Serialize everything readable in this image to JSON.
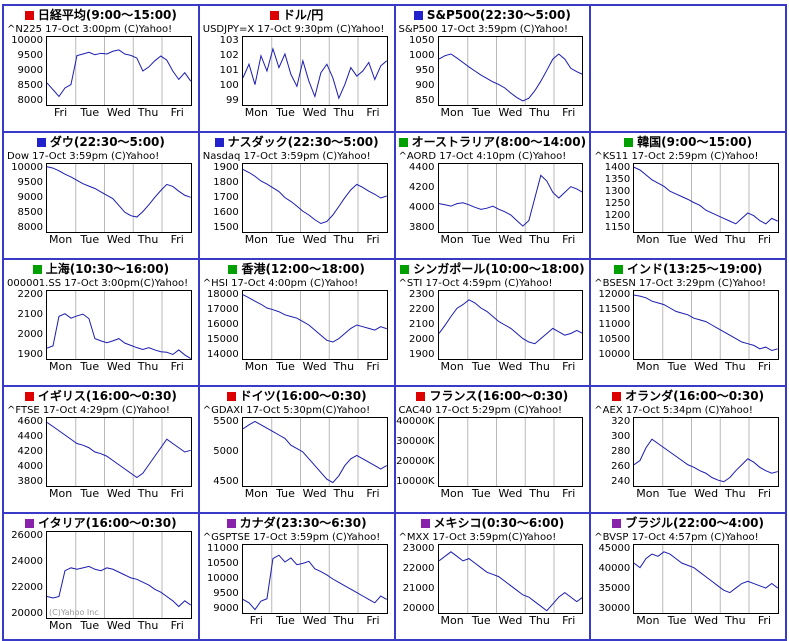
{
  "page": {
    "background": "#ffffff",
    "grid_border_color": "#3a3ac8",
    "plot_line_color": "#1c1cb0",
    "day_gridline_color": "#b8b8b8",
    "square_colors": {
      "red": "#dd0000",
      "blue": "#2222cc",
      "green": "#00a000",
      "purple": "#8822aa"
    }
  },
  "chart_data": [
    {
      "id": "nikkei",
      "type": "line",
      "square_color": "#dd0000",
      "title": "日経平均(9:00～15:00)",
      "subtitle": "^N225 17-Oct 3:00pm (C)Yahoo!",
      "y_ticks": [
        "10000",
        "9500",
        "9000",
        "8500",
        "8000"
      ],
      "x_labels": [
        "Fri",
        "Tue",
        "Wed",
        "Thu",
        "Fri"
      ],
      "ylim": [
        8000,
        10000
      ],
      "values": [
        8650,
        8450,
        8250,
        8500,
        8600,
        9450,
        9500,
        9550,
        9480,
        9520,
        9500,
        9580,
        9620,
        9500,
        9460,
        9380,
        9000,
        9120,
        9300,
        9440,
        9320,
        9000,
        8750,
        8950,
        8700
      ]
    },
    {
      "id": "usdjpy",
      "type": "line",
      "square_color": "#dd0000",
      "title": "ドル/円",
      "subtitle": "USDJPY=X 17-Oct 9:30pm (C)Yahoo!",
      "y_ticks": [
        "103",
        "102",
        "101",
        "100",
        "99"
      ],
      "x_labels": [
        "Mon",
        "Tue",
        "Wed",
        "Thu",
        "Fri"
      ],
      "ylim": [
        99,
        103
      ],
      "values": [
        100.6,
        101.4,
        100.2,
        101.9,
        101.0,
        102.3,
        101.2,
        102.0,
        100.8,
        100.1,
        101.6,
        100.4,
        99.5,
        100.9,
        101.4,
        100.6,
        99.4,
        100.2,
        101.2,
        100.7,
        101.0,
        101.5,
        100.5,
        101.3,
        101.6
      ]
    },
    {
      "id": "sp500",
      "type": "line",
      "square_color": "#2222cc",
      "title": "S&P500(22:30～5:00)",
      "subtitle": "S&P500 17-Oct 3:59pm (C)Yahoo!",
      "y_ticks": [
        "1050",
        "1000",
        "950",
        "900",
        "850"
      ],
      "x_labels": [
        "Mon",
        "Tue",
        "Wed",
        "Thu",
        "Fri"
      ],
      "ylim": [
        850,
        1050
      ],
      "values": [
        985,
        995,
        1000,
        988,
        975,
        962,
        950,
        938,
        928,
        918,
        910,
        900,
        885,
        872,
        862,
        870,
        892,
        920,
        952,
        985,
        1000,
        985,
        958,
        948,
        940
      ]
    },
    {
      "empty": true
    },
    {
      "id": "dow",
      "type": "line",
      "square_color": "#2222cc",
      "title": "ダウ(22:30～5:00)",
      "subtitle": "Dow 17-Oct 3:59pm (C)Yahoo!",
      "y_ticks": [
        "10000",
        "9500",
        "9000",
        "8500",
        "8000"
      ],
      "x_labels": [
        "Mon",
        "Tue",
        "Wed",
        "Thu",
        "Fri"
      ],
      "ylim": [
        8000,
        10000
      ],
      "values": [
        9920,
        9880,
        9800,
        9700,
        9620,
        9520,
        9420,
        9350,
        9280,
        9180,
        9080,
        8980,
        8780,
        8580,
        8480,
        8440,
        8600,
        8800,
        9020,
        9220,
        9400,
        9340,
        9200,
        9080,
        9020
      ]
    },
    {
      "id": "nasdaq",
      "type": "line",
      "square_color": "#2222cc",
      "title": "ナスダック(22:30～5:00)",
      "subtitle": "Nasdaq 17-Oct 3:59pm (C)Yahoo!",
      "y_ticks": [
        "1900",
        "1800",
        "1700",
        "1600",
        "1500"
      ],
      "x_labels": [
        "Mon",
        "Tue",
        "Wed",
        "Thu",
        "Fri"
      ],
      "ylim": [
        1500,
        1900
      ],
      "values": [
        1868,
        1850,
        1828,
        1800,
        1782,
        1760,
        1738,
        1702,
        1680,
        1652,
        1622,
        1600,
        1572,
        1550,
        1562,
        1600,
        1650,
        1702,
        1748,
        1780,
        1762,
        1740,
        1722,
        1700,
        1712
      ]
    },
    {
      "id": "australia",
      "type": "line",
      "square_color": "#00a000",
      "title": "オーストラリア(8:00～14:00)",
      "subtitle": "^AORD 17-Oct 4:10pm (C)Yahoo!",
      "y_ticks": [
        "4400",
        "4200",
        "4000",
        "3800"
      ],
      "x_labels": [
        "Mon",
        "Tue",
        "Wed",
        "Thu",
        "Fri"
      ],
      "ylim": [
        3800,
        4400
      ],
      "values": [
        4050,
        4040,
        4028,
        4050,
        4058,
        4040,
        4018,
        4000,
        4010,
        4028,
        4000,
        3978,
        3950,
        3900,
        3852,
        3900,
        4100,
        4300,
        4250,
        4150,
        4100,
        4150,
        4200,
        4180,
        4150
      ]
    },
    {
      "id": "korea",
      "type": "line",
      "square_color": "#00a000",
      "title": "韓国(9:00～15:00)",
      "subtitle": "^KS11 17-Oct 2:59pm (C)Yahoo!",
      "y_ticks": [
        "1400",
        "1350",
        "1300",
        "1250",
        "1200",
        "1150"
      ],
      "x_labels": [
        "Mon",
        "Tue",
        "Wed",
        "Thu",
        "Fri"
      ],
      "ylim": [
        1150,
        1400
      ],
      "values": [
        1388,
        1378,
        1360,
        1342,
        1330,
        1318,
        1300,
        1290,
        1280,
        1270,
        1258,
        1248,
        1230,
        1220,
        1210,
        1200,
        1190,
        1180,
        1200,
        1220,
        1210,
        1192,
        1180,
        1200,
        1190
      ]
    },
    {
      "id": "shanghai",
      "type": "line",
      "square_color": "#00a000",
      "title": "上海(10:30～16:00)",
      "subtitle": "000001.SS 17-Oct 3:00pm(C)Yahoo!",
      "y_ticks": [
        "2200",
        "2100",
        "2000",
        "1900"
      ],
      "x_labels": [
        "Mon",
        "Tue",
        "Wed",
        "Thu",
        "Fri"
      ],
      "ylim": [
        1900,
        2200
      ],
      "values": [
        1948,
        1958,
        2088,
        2100,
        2080,
        2090,
        2098,
        2078,
        1990,
        1980,
        1972,
        1980,
        1990,
        1970,
        1960,
        1950,
        1942,
        1950,
        1940,
        1932,
        1930,
        1920,
        1940,
        1918,
        1902
      ]
    },
    {
      "id": "hongkong",
      "type": "line",
      "square_color": "#00a000",
      "title": "香港(12:00～18:00)",
      "subtitle": "^HSI 17-Oct 4:00pm (C)Yahoo!",
      "y_ticks": [
        "18000",
        "17000",
        "16000",
        "15000",
        "14000"
      ],
      "x_labels": [
        "Mon",
        "Tue",
        "Wed",
        "Thu",
        "Fri"
      ],
      "ylim": [
        14000,
        18000
      ],
      "values": [
        17780,
        17600,
        17400,
        17220,
        17000,
        16900,
        16780,
        16600,
        16500,
        16400,
        16200,
        16000,
        15700,
        15400,
        15100,
        15000,
        15200,
        15500,
        15800,
        16000,
        15900,
        15800,
        15700,
        15900,
        15780
      ]
    },
    {
      "id": "singapore",
      "type": "line",
      "square_color": "#00a000",
      "title": "シンガポール(10:00～18:00)",
      "subtitle": "^STI 17-Oct 4:59pm (C)Yahoo!",
      "y_ticks": [
        "2300",
        "2200",
        "2100",
        "2000",
        "1900"
      ],
      "x_labels": [
        "Mon",
        "Tue",
        "Wed",
        "Thu",
        "Fri"
      ],
      "ylim": [
        1900,
        2300
      ],
      "values": [
        2050,
        2098,
        2150,
        2198,
        2220,
        2248,
        2230,
        2200,
        2180,
        2150,
        2120,
        2100,
        2080,
        2050,
        2020,
        2000,
        1990,
        2020,
        2050,
        2080,
        2060,
        2040,
        2050,
        2068,
        2050
      ]
    },
    {
      "id": "india",
      "type": "line",
      "square_color": "#00a000",
      "title": "インド(13:25～19:00)",
      "subtitle": "^BSESN 17-Oct 3:29pm (C)Yahoo!",
      "y_ticks": [
        "12000",
        "11500",
        "11000",
        "10500",
        "10000"
      ],
      "x_labels": [
        "Mon",
        "Tue",
        "Wed",
        "Thu",
        "Fri"
      ],
      "ylim": [
        10000,
        12000
      ],
      "values": [
        11880,
        11850,
        11800,
        11700,
        11650,
        11600,
        11500,
        11400,
        11350,
        11300,
        11200,
        11150,
        11100,
        11000,
        10900,
        10800,
        10700,
        10600,
        10500,
        10450,
        10400,
        10300,
        10350,
        10250,
        10300
      ]
    },
    {
      "id": "uk",
      "type": "line",
      "square_color": "#dd0000",
      "title": "イギリス(16:00～0:30)",
      "subtitle": "^FTSE 17-Oct 4:29pm (C)Yahoo!",
      "y_ticks": [
        "4600",
        "4400",
        "4200",
        "4000",
        "3800"
      ],
      "x_labels": [
        "Mon",
        "Tue",
        "Wed",
        "Thu",
        "Fri"
      ],
      "ylim": [
        3800,
        4600
      ],
      "values": [
        4548,
        4500,
        4450,
        4400,
        4350,
        4300,
        4280,
        4250,
        4200,
        4180,
        4150,
        4100,
        4050,
        4000,
        3950,
        3900,
        3950,
        4050,
        4150,
        4250,
        4350,
        4300,
        4250,
        4200,
        4220
      ]
    },
    {
      "id": "germany",
      "type": "line",
      "square_color": "#dd0000",
      "title": "ドイツ(16:00～0:30)",
      "subtitle": "^GDAXI 17-Oct 5:30pm(C)Yahoo!",
      "y_ticks": [
        "5500",
        "5000",
        "4500"
      ],
      "x_labels": [
        "Mon",
        "Tue",
        "Wed",
        "Thu",
        "Fri"
      ],
      "ylim": [
        4500,
        5500
      ],
      "values": [
        5340,
        5400,
        5450,
        5400,
        5350,
        5300,
        5250,
        5200,
        5100,
        5050,
        5000,
        4900,
        4800,
        4700,
        4600,
        4550,
        4650,
        4800,
        4900,
        4950,
        4900,
        4850,
        4800,
        4750,
        4800
      ]
    },
    {
      "id": "france",
      "type": "line",
      "square_color": "#dd0000",
      "title": "フランス(16:00～0:30)",
      "subtitle": "CAC40 17-Oct 5:29pm (C)Yahoo!",
      "y_ticks": [
        "40000K",
        "30000K",
        "20000K",
        "10000K"
      ],
      "x_labels": [
        "Mon",
        "Tue",
        "Wed",
        "Thu",
        "Fri"
      ],
      "ylim": [
        10000,
        40000
      ],
      "y_unit": "K",
      "values": []
    },
    {
      "id": "netherlands",
      "type": "line",
      "square_color": "#dd0000",
      "title": "オランダ(16:00～0:30)",
      "subtitle": "^AEX 17-Oct 5:34pm (C)Yahoo!",
      "y_ticks": [
        "320",
        "300",
        "280",
        "260",
        "240"
      ],
      "x_labels": [
        "Mon",
        "Tue",
        "Wed",
        "Thu",
        "Fri"
      ],
      "ylim": [
        240,
        320
      ],
      "values": [
        265,
        270,
        285,
        295,
        290,
        285,
        280,
        275,
        270,
        265,
        262,
        258,
        255,
        250,
        247,
        245,
        250,
        258,
        265,
        272,
        268,
        262,
        258,
        255,
        257
      ]
    },
    {
      "id": "italy",
      "type": "line",
      "square_color": "#8822aa",
      "title": "イタリア(16:00～0:30)",
      "subtitle": "",
      "watermark": "(C)Yahoo Inc",
      "y_ticks": [
        "26000",
        "24000",
        "22000",
        "20000"
      ],
      "x_labels": [
        "Mon",
        "Tue",
        "Wed",
        "Thu",
        "Fri"
      ],
      "ylim": [
        20000,
        26000
      ],
      "values": [
        21500,
        21400,
        21500,
        23300,
        23500,
        23400,
        23500,
        23600,
        23400,
        23300,
        23500,
        23400,
        23200,
        23000,
        22800,
        22700,
        22500,
        22300,
        22000,
        21800,
        21500,
        21200,
        20800,
        21200,
        20900
      ]
    },
    {
      "id": "canada",
      "type": "line",
      "square_color": "#8822aa",
      "title": "カナダ(23:30～6:30)",
      "subtitle": "^GSPTSE 17-Oct 3:59pm (C)Yahoo!",
      "y_ticks": [
        "11000",
        "10500",
        "10000",
        "9500",
        "9000"
      ],
      "x_labels": [
        "Fri",
        "Tue",
        "Wed",
        "Thu",
        "Fri"
      ],
      "ylim": [
        9000,
        11000
      ],
      "values": [
        9400,
        9300,
        9100,
        9350,
        9420,
        10600,
        10700,
        10500,
        10620,
        10420,
        10460,
        10520,
        10300,
        10220,
        10120,
        10000,
        9900,
        9800,
        9700,
        9600,
        9500,
        9400,
        9300,
        9500,
        9400
      ]
    },
    {
      "id": "mexico",
      "type": "line",
      "square_color": "#8822aa",
      "title": "メキシコ(0:30～6:00)",
      "subtitle": "^MXX 17-Oct 3:59pm(C)Yahoo!",
      "y_ticks": [
        "23000",
        "22000",
        "21000",
        "20000"
      ],
      "x_labels": [
        "Mon",
        "Tue",
        "Wed",
        "Thu",
        "Fri"
      ],
      "ylim": [
        20000,
        23000
      ],
      "values": [
        22300,
        22500,
        22700,
        22500,
        22300,
        22400,
        22200,
        22000,
        21800,
        21700,
        21600,
        21400,
        21200,
        21000,
        20800,
        20700,
        20500,
        20300,
        20100,
        20400,
        20700,
        20900,
        20700,
        20500,
        20700
      ]
    },
    {
      "id": "brazil",
      "type": "line",
      "square_color": "#8822aa",
      "title": "ブラジル(22:00～4:00)",
      "subtitle": "^BVSP 17-Oct 4:57pm (C)Yahoo!",
      "y_ticks": [
        "45000",
        "40000",
        "35000",
        "30000"
      ],
      "x_labels": [
        "Mon",
        "Tue",
        "Wed",
        "Thu",
        "Fri"
      ],
      "ylim": [
        30000,
        45000
      ],
      "values": [
        41000,
        40000,
        42000,
        43000,
        42500,
        43500,
        43000,
        42000,
        41000,
        40500,
        40000,
        39000,
        38000,
        37000,
        36000,
        35000,
        34500,
        35500,
        36500,
        37000,
        36500,
        36000,
        35500,
        36500,
        35500
      ]
    }
  ]
}
